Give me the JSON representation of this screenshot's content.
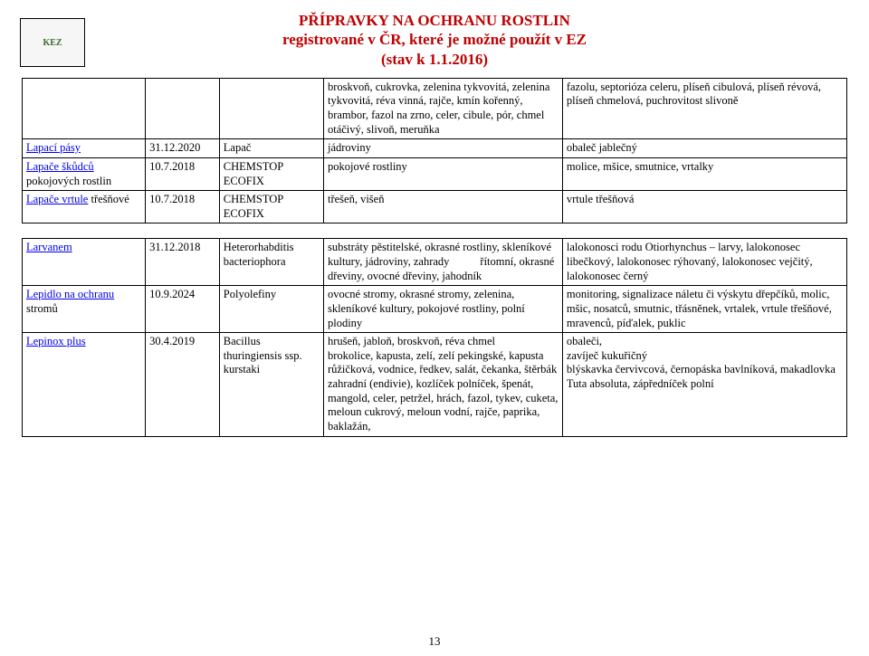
{
  "header": {
    "line1": "PŘÍPRAVKY NA OCHRANU ROSTLIN",
    "line2": "registrované v ČR, které je možné použít v EZ",
    "line3": "(stav k 1.1.2016)"
  },
  "logo_text": "KEZ",
  "page_number": "13",
  "table1": {
    "rows": [
      {
        "c1": "",
        "c2": "",
        "c3": "",
        "c4": "broskvoň, cukrovka, zelenina tykvovitá, zelenina tykvovitá, réva vinná, rajče, kmín kořenný, brambor, fazol na zrno, celer, cibule, pór, chmel otáčivý, slivoň, meruňka",
        "c5": "fazolu, septorióza celeru, plíseň cibulová, plíseň révová, plíseň chmelová, puchrovitost slivoně"
      },
      {
        "c1_link": "Lapací pásy",
        "c2": "31.12.2020",
        "c3": "Lapač",
        "c4": "jádroviny",
        "c5": "obaleč jablečný"
      },
      {
        "c1_link": "Lapače škůdců",
        "c1_rest": " pokojových rostlin",
        "c2": "10.7.2018",
        "c3": "CHEMSTOP ECOFIX",
        "c4": "pokojové rostliny",
        "c5": "molice, mšice, smutnice, vrtalky"
      },
      {
        "c1_link": "Lapače vrtule",
        "c1_rest": " třešňové",
        "c2": "10.7.2018",
        "c3": "CHEMSTOP ECOFIX",
        "c4": "třešeň, višeň",
        "c5": "vrtule třešňová"
      }
    ]
  },
  "table2": {
    "rows": [
      {
        "c1_link": "Larvanem",
        "c2": "31.12.2018",
        "c3": "Heterorhabditis bacteriophora",
        "c4_pre": "substráty pěstitelské, okrasné rostliny, skleníkové kultury, jádroviny, zahrady",
        "c4_tab": "řítomní,",
        "c4_post": " okrasné dřeviny, ovocné dřeviny, jahodník",
        "c5": "lalokonosci rodu Otiorhynchus – larvy, lalokonosec libečkový, lalokonosec rýhovaný, lalokonosec vejčitý, lalokonosec černý"
      },
      {
        "c1_link": "Lepidlo na ochranu",
        "c1_rest": " stromů",
        "c2": "10.9.2024",
        "c3": "Polyolefiny",
        "c4": "ovocné stromy, okrasné stromy, zelenina, skleníkové kultury, pokojové rostliny, polní plodiny",
        "c5": "monitoring, signalizace náletu či výskytu dřepčíků, molic, mšic, nosatců, smutnic, třásněnek, vrtalek, vrtule třešňové, mravenců, píďalek, puklic"
      },
      {
        "c1_link": "Lepinox plus",
        "c2": "30.4.2019",
        "c3": "Bacillus thuringiensis ssp. kurstaki",
        "c4": "hrušeň, jabloň, broskvoň, réva chmel\nbrokolice, kapusta, zelí, zelí pekingské, kapusta růžičková, vodnice, ředkev, salát, čekanka, štěrbák zahradní (endivie), kozlíček polníček, špenát, mangold, celer, petržel, hrách, fazol, tykev, cuketa, meloun cukrový, meloun vodní, rajče, paprika, baklažán,",
        "c5": "obaleči,\nzavíječ kukuřičný\nblýskavka červivcová, černopáska bavlníková, makadlovka Tuta absoluta, zápředníček polní"
      }
    ]
  }
}
